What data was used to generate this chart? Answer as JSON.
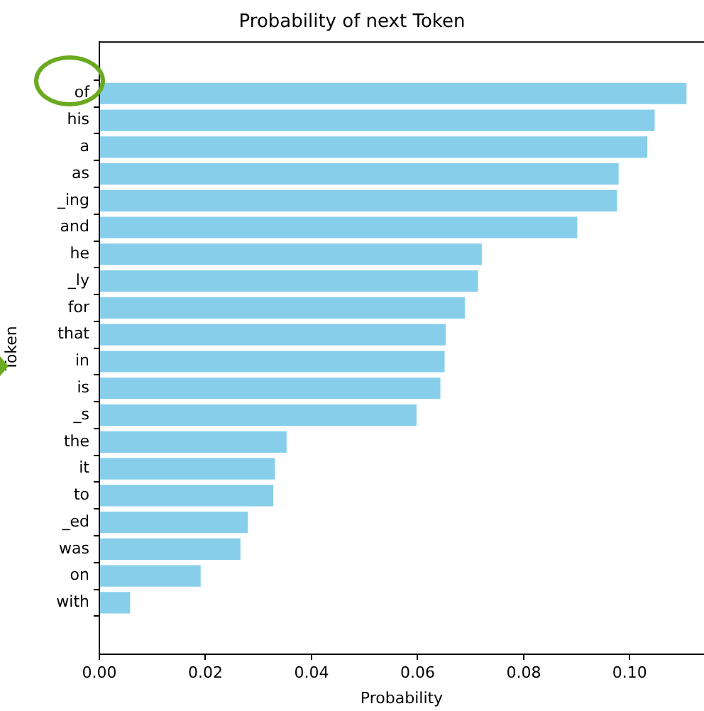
{
  "chart_data": {
    "type": "bar",
    "orientation": "horizontal",
    "title": "Probability of next Token",
    "xlabel": "Probability",
    "ylabel": "Token",
    "categories": [
      "of",
      "his",
      "a",
      "as",
      "_ing",
      "and",
      "he",
      "_ly",
      "for",
      "that",
      "in",
      "is",
      "_s",
      "the",
      "it",
      "to",
      "_ed",
      "was",
      "on",
      "with"
    ],
    "values": [
      0.1107,
      0.1047,
      0.1033,
      0.0979,
      0.0976,
      0.0901,
      0.0721,
      0.0714,
      0.0689,
      0.0653,
      0.0651,
      0.0643,
      0.0598,
      0.0353,
      0.0331,
      0.0328,
      0.028,
      0.0266,
      0.0191,
      0.0058
    ],
    "color": "#87ceeb",
    "xlim": [
      0,
      0.114
    ],
    "xticks": [
      {
        "value": 0,
        "label": "0.00"
      },
      {
        "value": 0.02,
        "label": "0.02"
      },
      {
        "value": 0.04,
        "label": "0.04"
      },
      {
        "value": 0.06,
        "label": "0.06"
      },
      {
        "value": 0.08,
        "label": "0.08"
      },
      {
        "value": 0.1,
        "label": "0.10"
      }
    ]
  }
}
